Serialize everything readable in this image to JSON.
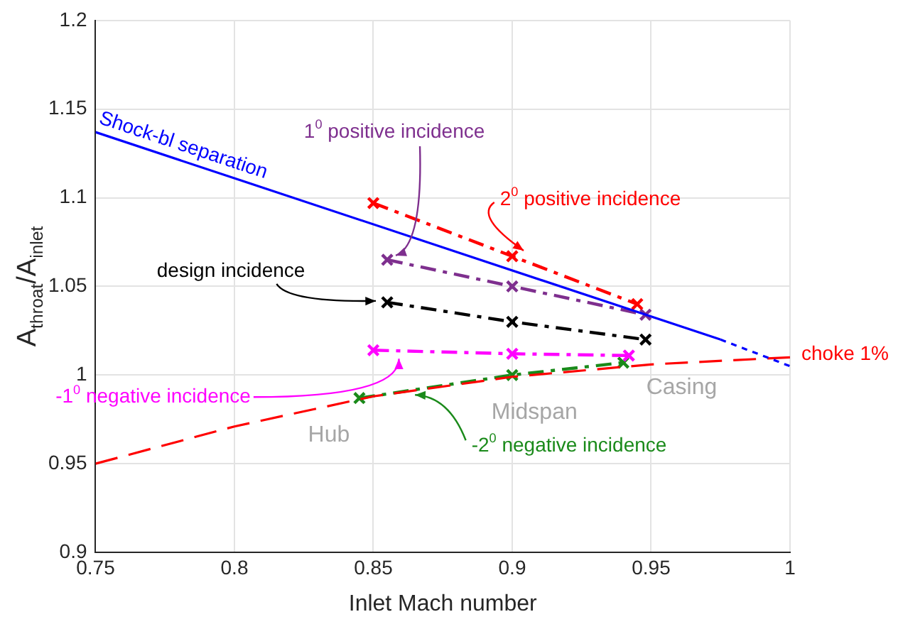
{
  "chart_data": {
    "type": "line",
    "xlabel": "Inlet Mach number",
    "ylabel": "A$_{throat}$/A$_{inlet}$",
    "xlim": [
      0.75,
      1
    ],
    "xticks": [
      0.75,
      0.8,
      0.85,
      0.9,
      0.95,
      1
    ],
    "ylim": [
      0.9,
      1.2
    ],
    "yticks": [
      0.9,
      0.95,
      1,
      1.05,
      1.1,
      1.15,
      1.2
    ],
    "grid": true,
    "marker": "cross",
    "series": [
      {
        "name": "Shock-bl separation",
        "color": "#0000ff",
        "x": [
          0.75,
          0.975
        ],
        "values": [
          1.137,
          1.02
        ],
        "marker": "none",
        "line_style": "solid"
      },
      {
        "color": "#0000ff",
        "x": [
          0.975,
          1.0
        ],
        "values": [
          1.02,
          1.005
        ],
        "marker": "none",
        "line_style": "dashed"
      },
      {
        "name": "choke 1%",
        "color": "#ff0000",
        "x": [
          0.75,
          0.8,
          0.85,
          0.9,
          0.95,
          1.0
        ],
        "values": [
          0.95,
          0.971,
          0.988,
          0.999,
          1.006,
          1.01
        ],
        "marker": "none",
        "line_style": "dashed"
      },
      {
        "name": "2$^{0}$ positive incidence",
        "color": "#ff0000",
        "x": [
          0.85,
          0.9,
          0.945
        ],
        "values": [
          1.097,
          1.067,
          1.04
        ],
        "line_style": "dashdot"
      },
      {
        "name": "1$^{0}$ positive incidence",
        "color": "#7e2f8e",
        "x": [
          0.855,
          0.9,
          0.948
        ],
        "values": [
          1.065,
          1.05,
          1.034
        ],
        "line_style": "dashdot"
      },
      {
        "name": "design incidence",
        "color": "#000000",
        "x": [
          0.855,
          0.9,
          0.948
        ],
        "values": [
          1.041,
          1.03,
          1.02
        ],
        "line_style": "dashdot"
      },
      {
        "name": "-1$^{0}$ negative incidence",
        "color": "#ff00ff",
        "x": [
          0.85,
          0.9,
          0.942
        ],
        "values": [
          1.014,
          1.012,
          1.011
        ],
        "line_style": "dashdot"
      },
      {
        "name": "-2$^{0}$ negative incidence",
        "color": "#1a8a1a",
        "x": [
          0.845,
          0.9,
          0.94
        ],
        "values": [
          0.987,
          1.0,
          1.007
        ],
        "line_style": "dashdot"
      }
    ],
    "annotations": [
      "Hub",
      "Midspan",
      "Casing"
    ]
  }
}
